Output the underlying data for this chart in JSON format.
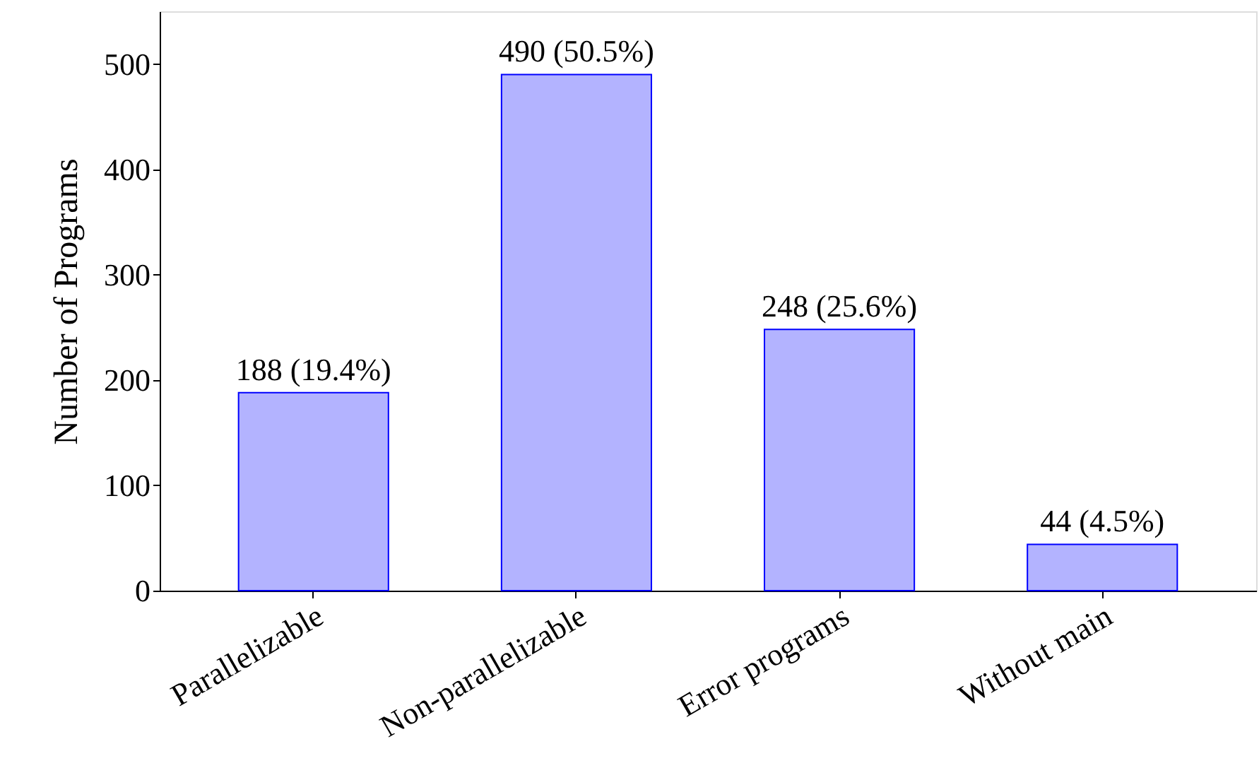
{
  "chart_data": {
    "type": "bar",
    "ylabel": "Number of Programs",
    "categories": [
      "Parallelizable",
      "Non-parallelizable",
      "Error programs",
      "Without main"
    ],
    "values": [
      188,
      490,
      248,
      44
    ],
    "value_labels": [
      "188 (19.4%)",
      "490 (50.5%)",
      "248 (25.6%)",
      "44 (4.5%)"
    ],
    "color": "#b3b3ff",
    "ylim": [
      0,
      550
    ],
    "yticks": [
      0,
      100,
      200,
      300,
      400,
      500
    ],
    "grid": false
  }
}
